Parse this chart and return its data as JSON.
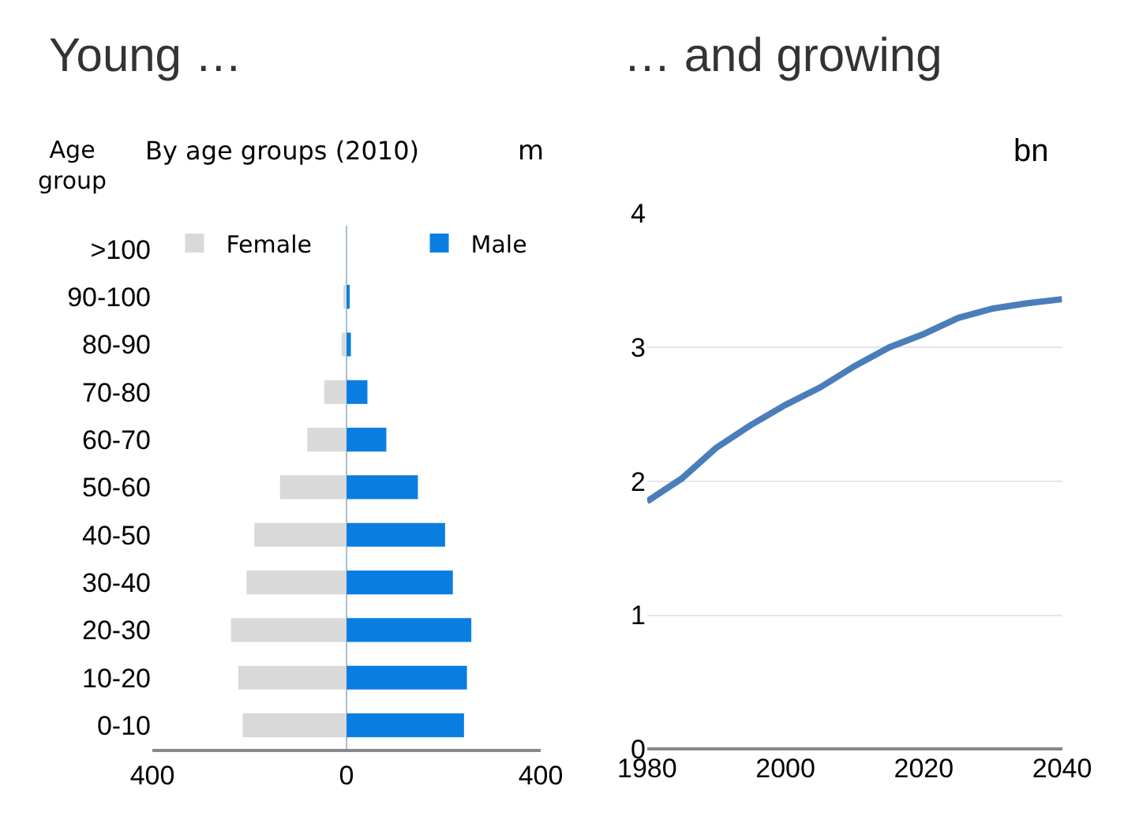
{
  "chart_data": [
    {
      "type": "bar",
      "orientation": "horizontal",
      "title": "Young …",
      "subtitle": "By age groups (2010)",
      "ylabel": "Age group",
      "xlabel": "m",
      "categories": [
        ">100",
        "90-100",
        "80-90",
        "70-80",
        "60-70",
        "50-60",
        "40-50",
        "30-40",
        "20-30",
        "10-20",
        "0-10"
      ],
      "series": [
        {
          "name": "Female",
          "color": "#d9d9d9",
          "values": [
            0,
            -4,
            -10,
            -46,
            -81,
            -137,
            -190,
            -206,
            -238,
            -223,
            -214
          ]
        },
        {
          "name": "Male",
          "color": "#0a7ee0",
          "values": [
            0,
            4,
            9,
            43,
            82,
            147,
            203,
            219,
            257,
            248,
            242
          ]
        }
      ],
      "xlim": [
        -400,
        400
      ],
      "xticks": [
        {
          "value": -400,
          "label": "400"
        },
        0,
        400
      ],
      "grid": false,
      "legend": "top",
      "stacked": true,
      "ref_lines": [
        {
          "axis": "x",
          "value": 0,
          "color": "#a6bfd4"
        }
      ]
    },
    {
      "type": "line",
      "title": "… and growing",
      "ylabel": "bn",
      "x": [
        1980,
        1985,
        1990,
        1995,
        2000,
        2005,
        2010,
        2015,
        2020,
        2025,
        2030,
        2035,
        2040
      ],
      "series": [
        {
          "color": "#4a7ebb",
          "values": [
            1.85,
            2.02,
            2.25,
            2.42,
            2.57,
            2.7,
            2.86,
            3.0,
            3.1,
            3.22,
            3.29,
            3.33,
            3.36
          ]
        }
      ],
      "xlim": [
        1980,
        2040
      ],
      "xticks": [
        1980,
        2000,
        2020,
        2040
      ],
      "ylim": [
        0,
        4
      ],
      "yticks": [
        0,
        1,
        2,
        3,
        4
      ],
      "grid": "y",
      "legend": false,
      "marker": "none"
    }
  ]
}
